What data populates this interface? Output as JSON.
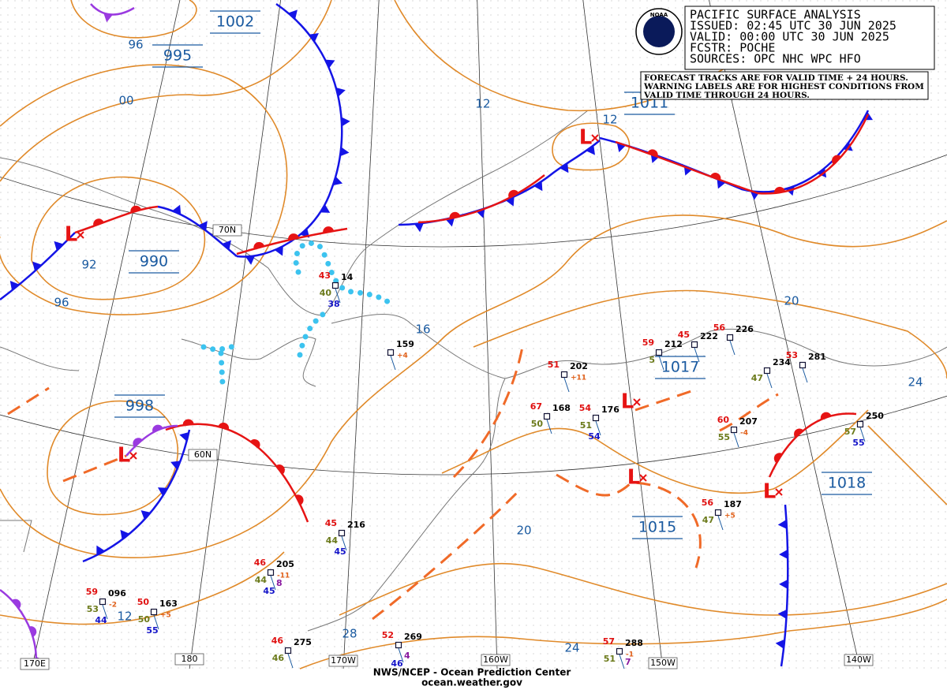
{
  "header": {
    "logo": "NOAA",
    "lines": [
      "PACIFIC SURFACE ANALYSIS",
      "ISSUED: 02:45 UTC 30 JUN 2025",
      "VALID:  00:00 UTC 30 JUN 2025",
      "FCSTR:  POCHE",
      "SOURCES: OPC NHC WPC HFO"
    ]
  },
  "notice": {
    "lines": [
      "FORECAST TRACKS ARE FOR VALID TIME + 24 HOURS.",
      "WARNING LABELS ARE FOR HIGHEST CONDITIONS FROM",
      "VALID TIME THROUGH 24 HOURS."
    ]
  },
  "footer": {
    "agency": "NWS/NCEP - Ocean Prediction Center",
    "website": "ocean.weather.gov"
  },
  "low_symbol": "L",
  "pressure_centers": [
    "1002",
    "995",
    "990",
    "998",
    "1011",
    "1017",
    "1018",
    "1015"
  ],
  "isobar_labels": [
    "96",
    "00",
    "92",
    "96",
    "12",
    "12",
    "16",
    "20",
    "20",
    "24",
    "28",
    "24",
    "12"
  ],
  "grid_labels": [
    "170E",
    "180",
    "170W",
    "160W",
    "150W",
    "140W",
    "70N",
    "60N"
  ],
  "stations": [
    {
      "top": "43",
      "code": "14",
      "mid": "40",
      "low": "38"
    },
    {
      "code": "159",
      "trend": "+4"
    },
    {
      "top": "51",
      "code": "202",
      "trend": "+11"
    },
    {
      "top": "67",
      "code": "168",
      "mid": "50"
    },
    {
      "top": "54",
      "code": "176",
      "mid": "51",
      "low": "54"
    },
    {
      "top": "59",
      "code": "212",
      "mid": "5"
    },
    {
      "top": "45",
      "code": "222"
    },
    {
      "top": "56",
      "code": "226"
    },
    {
      "code": "234",
      "mid": "47"
    },
    {
      "top": "53",
      "code": "281"
    },
    {
      "top": "60",
      "code": "207",
      "trend": "-4",
      "mid": "55"
    },
    {
      "code": "250",
      "mid": "57",
      "low": "55"
    },
    {
      "top": "56",
      "code": "187",
      "trend": "+5",
      "mid": "47"
    },
    {
      "top": "45",
      "code": "216",
      "mid": "44",
      "low": "45"
    },
    {
      "top": "46",
      "code": "205",
      "trend": "-11",
      "mid": "44",
      "extra": "8",
      "low": "45"
    },
    {
      "top": "59",
      "code": "096",
      "trend": "-2",
      "mid": "53",
      "low": "44"
    },
    {
      "top": "50",
      "code": "163",
      "trend": "+5",
      "mid": "50",
      "low": "55"
    },
    {
      "top": "46",
      "code": "275",
      "mid": "46"
    },
    {
      "top": "52",
      "code": "269",
      "extra": "4",
      "low": "46"
    },
    {
      "top": "57",
      "code": "288",
      "trend": "-1",
      "mid": "51",
      "extra": "7"
    }
  ]
}
